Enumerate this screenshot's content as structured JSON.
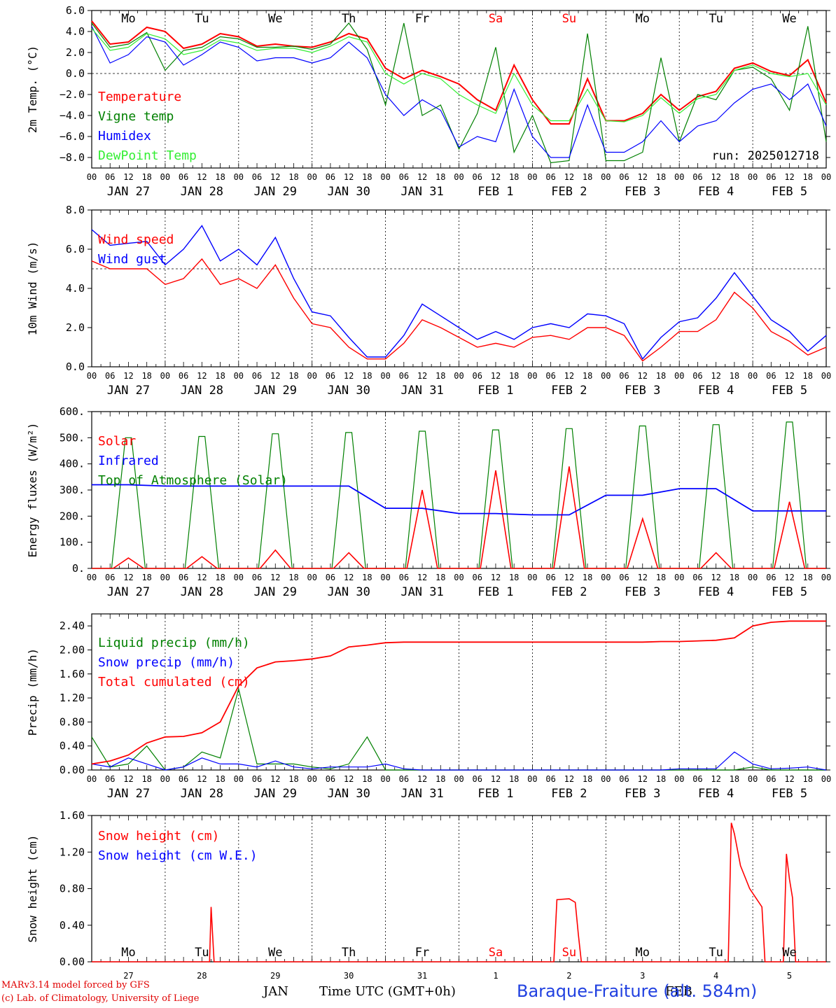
{
  "run_label": "run: 2025012718",
  "footer": {
    "model": "MARv3.14 model forced by GFS",
    "lab": "(c) Lab. of Climatology, University of Liege",
    "month": "JAN",
    "month2": "FEB",
    "xlabel": "Time UTC (GMT+0h)",
    "station": "Baraque-Fraiture (alt. 584m)"
  },
  "colors": {
    "red": "#ff0000",
    "green": "#008000",
    "blue": "#0000ff",
    "lightgreen": "#33ee33",
    "weekend": "#ff0000"
  },
  "chart_data": [
    {
      "type": "line",
      "ylabel": "2m Temp. (°C)",
      "ylim": [
        -9,
        6
      ],
      "yticks": [
        "6.0",
        "4.0",
        "2.0",
        "0.0",
        "−2.0",
        "−4.0",
        "−6.0",
        "−8.0"
      ],
      "reference_line": 0,
      "day_names": [
        "Mo",
        "Tu",
        "We",
        "Th",
        "Fr",
        "Sa",
        "Su",
        "Mo",
        "Tu",
        "We"
      ],
      "date_labels": [
        "JAN 27",
        "JAN 28",
        "JAN 29",
        "JAN 30",
        "JAN 31",
        "FEB  1",
        "FEB  2",
        "FEB  3",
        "FEB  4",
        "FEB  5"
      ],
      "hour_ticks": [
        "00",
        "06",
        "12",
        "18"
      ],
      "x_hours": [
        0,
        6,
        12,
        18,
        24,
        30,
        36,
        42,
        48,
        54,
        60,
        66,
        72,
        78,
        84,
        90,
        96,
        102,
        108,
        114,
        120,
        126,
        132,
        138,
        144,
        150,
        156,
        162,
        168,
        174,
        180,
        186,
        192,
        198,
        204,
        210,
        216,
        222,
        228,
        234,
        240
      ],
      "series": [
        {
          "name": "Temperature",
          "color": "#ff0000",
          "values": [
            5.0,
            2.8,
            3.0,
            4.4,
            4.0,
            2.4,
            2.8,
            3.8,
            3.5,
            2.6,
            2.8,
            2.6,
            2.5,
            3.0,
            3.8,
            3.3,
            0.5,
            -0.5,
            0.3,
            -0.3,
            -1.0,
            -2.5,
            -3.5,
            0.8,
            -2.5,
            -4.8,
            -4.8,
            -0.5,
            -4.5,
            -4.5,
            -3.8,
            -2.0,
            -3.5,
            -2.2,
            -1.7,
            0.5,
            1.0,
            0.2,
            -0.2,
            1.3,
            -2.8
          ]
        },
        {
          "name": "Vigne temp",
          "color": "#008000",
          "values": [
            4.8,
            2.5,
            2.8,
            3.9,
            0.3,
            2.2,
            2.5,
            3.5,
            3.3,
            2.5,
            2.5,
            2.6,
            2.3,
            2.8,
            4.8,
            2.3,
            -3.0,
            4.8,
            -4.0,
            -3.0,
            -7.2,
            -3.8,
            2.5,
            -7.5,
            -4.0,
            -8.5,
            -8.3,
            3.8,
            -8.3,
            -8.3,
            -7.5,
            1.5,
            -6.5,
            -2.0,
            -2.5,
            0.3,
            0.6,
            -0.5,
            -3.5,
            4.5,
            -6.5
          ]
        },
        {
          "name": "Humidex",
          "color": "#0000ff",
          "values": [
            4.5,
            1.0,
            1.8,
            3.5,
            3.0,
            0.8,
            1.8,
            3.0,
            2.5,
            1.2,
            1.5,
            1.5,
            1.0,
            1.5,
            3.0,
            1.5,
            -2.0,
            -4.0,
            -2.5,
            -3.5,
            -7.0,
            -6.0,
            -6.5,
            -1.5,
            -6.0,
            -8.0,
            -8.0,
            -3.0,
            -7.5,
            -7.5,
            -6.5,
            -4.5,
            -6.5,
            -5.0,
            -4.5,
            -2.8,
            -1.5,
            -1.0,
            -2.5,
            -1.0,
            -5.0
          ]
        },
        {
          "name": "DewPoint Temp",
          "color": "#33ee33",
          "values": [
            4.3,
            2.2,
            2.5,
            3.8,
            3.3,
            1.8,
            2.2,
            3.2,
            2.9,
            2.2,
            2.4,
            2.4,
            2.0,
            2.6,
            3.5,
            3.0,
            0.0,
            -1.0,
            0.0,
            -0.5,
            -2.0,
            -3.0,
            -3.8,
            0.0,
            -3.0,
            -4.5,
            -4.5,
            -1.5,
            -4.5,
            -4.6,
            -4.0,
            -2.3,
            -3.8,
            -2.4,
            -2.0,
            0.3,
            0.8,
            0.0,
            -0.3,
            0.0,
            -3.0
          ]
        }
      ]
    },
    {
      "type": "line",
      "ylabel": "10m Wind (m/s)",
      "ylim": [
        0,
        8
      ],
      "yticks": [
        "8.0",
        "6.0",
        "4.0",
        "2.0",
        "0.0"
      ],
      "reference_line": 5,
      "date_labels": [
        "JAN 27",
        "JAN 28",
        "JAN 29",
        "JAN 30",
        "JAN 31",
        "FEB  1",
        "FEB  2",
        "FEB  3",
        "FEB  4",
        "FEB  5"
      ],
      "hour_ticks": [
        "00",
        "06",
        "12",
        "18"
      ],
      "x_hours": [
        0,
        6,
        12,
        18,
        24,
        30,
        36,
        42,
        48,
        54,
        60,
        66,
        72,
        78,
        84,
        90,
        96,
        102,
        108,
        114,
        120,
        126,
        132,
        138,
        144,
        150,
        156,
        162,
        168,
        174,
        180,
        186,
        192,
        198,
        204,
        210,
        216,
        222,
        228,
        234,
        240
      ],
      "series": [
        {
          "name": "Wind speed",
          "color": "#ff0000",
          "values": [
            5.4,
            5.0,
            5.0,
            5.0,
            4.2,
            4.5,
            5.5,
            4.2,
            4.5,
            4.0,
            5.2,
            3.5,
            2.2,
            2.0,
            1.0,
            0.4,
            0.4,
            1.2,
            2.4,
            2.0,
            1.5,
            1.0,
            1.2,
            1.0,
            1.5,
            1.6,
            1.4,
            2.0,
            2.0,
            1.6,
            0.3,
            1.0,
            1.8,
            1.8,
            2.4,
            3.8,
            3.0,
            1.8,
            1.3,
            0.6,
            1.0
          ]
        },
        {
          "name": "Wind gust",
          "color": "#0000ff",
          "values": [
            7.0,
            6.2,
            6.3,
            6.4,
            5.2,
            6.0,
            7.2,
            5.4,
            6.0,
            5.2,
            6.6,
            4.5,
            2.8,
            2.6,
            1.5,
            0.5,
            0.5,
            1.6,
            3.2,
            2.6,
            2.0,
            1.4,
            1.8,
            1.4,
            2.0,
            2.2,
            2.0,
            2.7,
            2.6,
            2.2,
            0.4,
            1.5,
            2.3,
            2.5,
            3.5,
            4.8,
            3.6,
            2.4,
            1.8,
            0.8,
            1.6
          ]
        }
      ]
    },
    {
      "type": "line",
      "ylabel": "Energy fluxes (W/m²)",
      "ylim": [
        0,
        600
      ],
      "yticks": [
        "600.",
        "500.",
        "400.",
        "300.",
        "200.",
        "100.",
        "0."
      ],
      "date_labels": [
        "JAN 27",
        "JAN 28",
        "JAN 29",
        "JAN 30",
        "JAN 31",
        "FEB  1",
        "FEB  2",
        "FEB  3",
        "FEB  4",
        "FEB  5"
      ],
      "hour_ticks": [
        "00",
        "06",
        "12",
        "18"
      ],
      "daily_peaks": {
        "solar": [
          40,
          45,
          70,
          60,
          300,
          375,
          390,
          190,
          60,
          255
        ],
        "top_of_atmosphere": [
          500,
          505,
          515,
          520,
          525,
          530,
          535,
          545,
          550,
          560
        ],
        "infrared": [
          320,
          315,
          315,
          315,
          230,
          210,
          205,
          280,
          305,
          220
        ]
      },
      "series": [
        {
          "name": "Solar",
          "color": "#ff0000"
        },
        {
          "name": "Infrared",
          "color": "#0000ff"
        },
        {
          "name": "Top of Atmosphere (Solar)",
          "color": "#008000"
        }
      ]
    },
    {
      "type": "line",
      "ylabel": "Precip (mm/h)",
      "ylim": [
        0,
        2.6
      ],
      "yticks": [
        "2.40",
        "2.00",
        "1.60",
        "1.20",
        "0.80",
        "0.40",
        "0.00"
      ],
      "date_labels": [
        "JAN 27",
        "JAN 28",
        "JAN 29",
        "JAN 30",
        "JAN 31",
        "FEB  1",
        "FEB  2",
        "FEB  3",
        "FEB  4",
        "FEB  5"
      ],
      "hour_ticks": [
        "00",
        "06",
        "12",
        "18"
      ],
      "x_hours": [
        0,
        6,
        12,
        18,
        24,
        30,
        36,
        42,
        48,
        54,
        60,
        66,
        72,
        78,
        84,
        90,
        96,
        102,
        108,
        114,
        120,
        126,
        132,
        138,
        144,
        150,
        156,
        162,
        168,
        174,
        180,
        186,
        192,
        198,
        204,
        210,
        216,
        222,
        228,
        234,
        240
      ],
      "series": [
        {
          "name": "Liquid precip (mm/h)",
          "color": "#008000",
          "values": [
            0.55,
            0.05,
            0.1,
            0.4,
            0.0,
            0.05,
            0.3,
            0.2,
            1.35,
            0.1,
            0.1,
            0.1,
            0.05,
            0.02,
            0.1,
            0.55,
            0.0,
            0.0,
            0.0,
            0.0,
            0.0,
            0.0,
            0.0,
            0.0,
            0.0,
            0.0,
            0.0,
            0.0,
            0.0,
            0.0,
            0.0,
            0.0,
            0.0,
            0.0,
            0.0,
            0.0,
            0.05,
            0.0,
            0.0,
            0.0,
            0.0
          ]
        },
        {
          "name": "Snow precip (mm/h)",
          "color": "#0000ff",
          "values": [
            0.1,
            0.05,
            0.2,
            0.1,
            0.0,
            0.05,
            0.2,
            0.1,
            0.1,
            0.05,
            0.15,
            0.05,
            0.02,
            0.05,
            0.05,
            0.05,
            0.1,
            0.02,
            0.0,
            0.0,
            0.0,
            0.0,
            0.0,
            0.0,
            0.0,
            0.0,
            0.0,
            0.0,
            0.0,
            0.0,
            0.0,
            0.0,
            0.02,
            0.02,
            0.02,
            0.3,
            0.1,
            0.02,
            0.03,
            0.05,
            0.0
          ]
        },
        {
          "name": "Total cumulated (cm)",
          "color": "#ff0000",
          "values": [
            0.1,
            0.15,
            0.25,
            0.45,
            0.55,
            0.56,
            0.62,
            0.8,
            1.4,
            1.7,
            1.8,
            1.82,
            1.85,
            1.9,
            2.05,
            2.08,
            2.12,
            2.13,
            2.13,
            2.13,
            2.13,
            2.13,
            2.13,
            2.13,
            2.13,
            2.13,
            2.13,
            2.13,
            2.13,
            2.13,
            2.13,
            2.14,
            2.14,
            2.15,
            2.16,
            2.2,
            2.4,
            2.46,
            2.48,
            2.48,
            2.48
          ]
        }
      ]
    },
    {
      "type": "line",
      "ylabel": "Snow height (cm)",
      "ylim": [
        0,
        1.6
      ],
      "yticks": [
        "1.60",
        "1.20",
        "0.80",
        "0.40",
        "0.00"
      ],
      "day_names": [
        "Mo",
        "Tu",
        "We",
        "Th",
        "Fr",
        "Sa",
        "Su",
        "Mo",
        "Tu",
        "We"
      ],
      "day_numbers": [
        "27",
        "28",
        "29",
        "30",
        "31",
        "1",
        "2",
        "3",
        "4",
        "5"
      ],
      "series": [
        {
          "name": "Snow height (cm)",
          "color": "#ff0000",
          "x_hours": [
            0,
            38.5,
            39.0,
            39.5,
            40.0,
            151.0,
            152.0,
            156.0,
            158.0,
            159.0,
            160.0,
            208.0,
            209.0,
            210.0,
            212.0,
            215.0,
            219.0,
            220.0,
            226.0,
            227.0,
            228.0,
            229.0,
            230.0,
            240.0
          ],
          "values": [
            0,
            0,
            0.6,
            0.3,
            0,
            0,
            0.68,
            0.69,
            0.65,
            0.3,
            0,
            0,
            1.52,
            1.4,
            1.05,
            0.8,
            0.6,
            0,
            0,
            1.18,
            0.9,
            0.7,
            0,
            0
          ]
        },
        {
          "name": "Snow height (cm W.E.)",
          "color": "#0000ff"
        }
      ]
    }
  ]
}
